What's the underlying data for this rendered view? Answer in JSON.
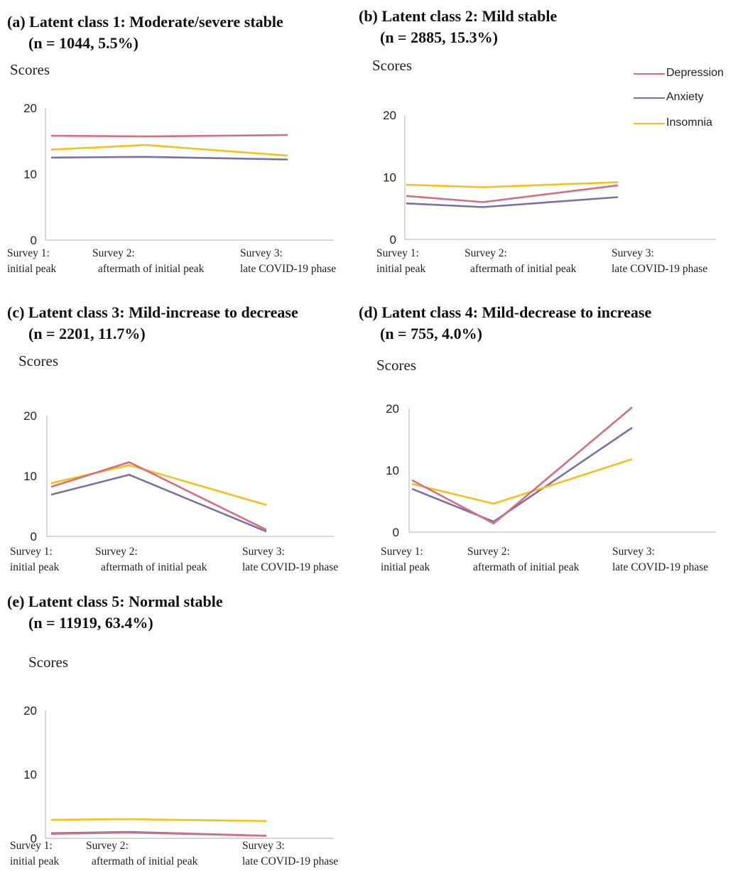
{
  "legend": {
    "items": [
      {
        "label": "Depression",
        "color": "#d4707e"
      },
      {
        "label": "Anxiety",
        "color": "#7d6fa6"
      },
      {
        "label": "Insomnia",
        "color": "#f3c11b"
      }
    ]
  },
  "chart_data": [
    {
      "type": "line",
      "title_line1": "(a) Latent class 1: Moderate/severe stable",
      "title_line2": "(n = 1044, 5.5%)",
      "ylabel": "Scores",
      "categories": [
        {
          "line1": "Survey 1:",
          "line2": "initial peak"
        },
        {
          "line1": "Survey 2:",
          "line2": "aftermath of initial peak"
        },
        {
          "line1": "Survey 3:",
          "line2": "late COVID-19 phase"
        }
      ],
      "yticks": [
        0,
        10,
        20
      ],
      "ylim": [
        0,
        20
      ],
      "series": [
        {
          "name": "Depression",
          "values": [
            15.8,
            15.7,
            15.9
          ]
        },
        {
          "name": "Anxiety",
          "values": [
            12.5,
            12.6,
            12.2
          ]
        },
        {
          "name": "Insomnia",
          "values": [
            13.7,
            14.4,
            12.8
          ]
        }
      ]
    },
    {
      "type": "line",
      "title_line1": "(b) Latent class 2: Mild stable",
      "title_line2": "(n = 2885, 15.3%)",
      "ylabel": "Scores",
      "categories": [
        {
          "line1": "Survey 1:",
          "line2": "initial peak"
        },
        {
          "line1": "Survey 2:",
          "line2": "aftermath of initial peak"
        },
        {
          "line1": "Survey 3:",
          "line2": "late COVID-19 phase"
        }
      ],
      "yticks": [
        0,
        10,
        20
      ],
      "ylim": [
        0,
        20
      ],
      "series": [
        {
          "name": "Depression",
          "values": [
            7.0,
            6.0,
            8.7
          ]
        },
        {
          "name": "Anxiety",
          "values": [
            5.8,
            5.2,
            6.8
          ]
        },
        {
          "name": "Insomnia",
          "values": [
            8.8,
            8.4,
            9.2
          ]
        }
      ]
    },
    {
      "type": "line",
      "title_line1": "(c) Latent class 3: Mild-increase to decrease",
      "title_line2": "(n = 2201, 11.7%)",
      "ylabel": "Scores",
      "categories": [
        {
          "line1": "Survey 1:",
          "line2": "initial peak"
        },
        {
          "line1": "Survey 2:",
          "line2": "aftermath of initial peak"
        },
        {
          "line1": "Survey 3:",
          "line2": "late COVID-19 phase"
        }
      ],
      "yticks": [
        0,
        10,
        20
      ],
      "ylim": [
        0,
        20
      ],
      "series": [
        {
          "name": "Depression",
          "values": [
            8.2,
            12.3,
            1.1
          ]
        },
        {
          "name": "Anxiety",
          "values": [
            6.9,
            10.2,
            0.8
          ]
        },
        {
          "name": "Insomnia",
          "values": [
            8.8,
            11.8,
            5.2
          ]
        }
      ]
    },
    {
      "type": "line",
      "title_line1": "(d) Latent class 4: Mild-decrease to increase",
      "title_line2": "(n = 755, 4.0%)",
      "ylabel": "Scores",
      "categories": [
        {
          "line1": "Survey 1:",
          "line2": "initial peak"
        },
        {
          "line1": "Survey 2:",
          "line2": "aftermath of initial peak"
        },
        {
          "line1": "Survey 3:",
          "line2": "late COVID-19 phase"
        }
      ],
      "yticks": [
        0,
        10,
        20
      ],
      "ylim": [
        0,
        20
      ],
      "series": [
        {
          "name": "Depression",
          "values": [
            8.4,
            1.4,
            20.2
          ]
        },
        {
          "name": "Anxiety",
          "values": [
            7.0,
            1.7,
            16.9
          ]
        },
        {
          "name": "Insomnia",
          "values": [
            7.8,
            4.6,
            11.8
          ]
        }
      ]
    },
    {
      "type": "line",
      "title_line1": "(e) Latent class 5: Normal stable",
      "title_line2": "(n = 11919, 63.4%)",
      "ylabel": "Scores",
      "categories": [
        {
          "line1": "Survey 1:",
          "line2": "initial peak"
        },
        {
          "line1": "Survey 2:",
          "line2": "aftermath of initial peak"
        },
        {
          "line1": "Survey 3:",
          "line2": "late COVID-19 phase"
        }
      ],
      "yticks": [
        0,
        10,
        20
      ],
      "ylim": [
        0,
        20
      ],
      "series": [
        {
          "name": "Depression",
          "values": [
            0.7,
            0.9,
            0.4
          ]
        },
        {
          "name": "Anxiety",
          "values": [
            0.8,
            1.0,
            0.4
          ]
        },
        {
          "name": "Insomnia",
          "values": [
            2.9,
            3.0,
            2.7
          ]
        }
      ]
    }
  ]
}
